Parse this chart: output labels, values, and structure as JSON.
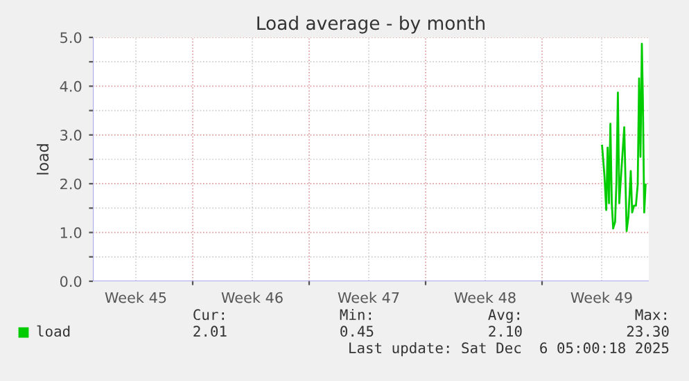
{
  "chart_data": {
    "type": "line",
    "title": "Load average - by month",
    "ylabel": "load",
    "x": [
      "2025-12-04T14:36",
      "2025-12-04T18:00",
      "2025-12-04T20:36",
      "2025-12-04T22:36",
      "2025-12-05T00:36",
      "2025-12-05T02:36",
      "2025-12-05T04:36",
      "2025-12-05T06:36",
      "2025-12-05T09:24",
      "2025-12-05T11:24",
      "2025-12-05T13:24",
      "2025-12-05T15:24",
      "2025-12-05T18:00",
      "2025-12-05T22:36",
      "2025-12-06T02:00",
      "2025-12-06T04:36",
      "2025-12-06T08:00",
      "2025-12-06T10:00",
      "2025-12-06T12:36",
      "2025-12-06T15:24",
      "2025-12-06T18:00",
      "2025-12-06T20:00",
      "2025-12-06T22:00",
      "2025-12-07T00:00",
      "2025-12-07T01:24",
      "2025-12-07T03:24",
      "2025-12-07T05:24"
    ],
    "series": [
      {
        "name": "load",
        "color": "#00cc00",
        "values": [
          2.78,
          2.17,
          1.46,
          2.74,
          1.6,
          3.23,
          1.6,
          1.08,
          1.22,
          2.07,
          3.87,
          1.6,
          2.17,
          3.16,
          1.03,
          1.32,
          2.26,
          1.41,
          1.55,
          1.55,
          1.98,
          4.16,
          2.55,
          4.87,
          3.78,
          1.41,
          1.98
        ]
      }
    ],
    "xlim": [
      "2025-11-04",
      "2025-12-07T10:00"
    ],
    "xticks": [
      {
        "value": "2025-11-06T14:00",
        "label": "Week 45"
      },
      {
        "value": "2025-11-13T14:00",
        "label": "Week 46"
      },
      {
        "value": "2025-11-20T14:00",
        "label": "Week 47"
      },
      {
        "value": "2025-11-27T14:00",
        "label": "Week 48"
      },
      {
        "value": "2025-12-04T14:00",
        "label": "Week 49"
      },
      {
        "value": "2025-11-10",
        "label": null
      },
      {
        "value": "2025-11-17",
        "label": null
      },
      {
        "value": "2025-11-24",
        "label": null
      },
      {
        "value": "2025-12-01",
        "label": null
      }
    ],
    "ylim": [
      0,
      5
    ],
    "yticks": [
      {
        "value": 0,
        "label": "0.0"
      },
      {
        "value": 0.5,
        "label": null
      },
      {
        "value": 1,
        "label": "1.0"
      },
      {
        "value": 1.5,
        "label": null
      },
      {
        "value": 2,
        "label": "2.0"
      },
      {
        "value": 2.5,
        "label": null
      },
      {
        "value": 3,
        "label": "3.0"
      },
      {
        "value": 3.5,
        "label": null
      },
      {
        "value": 4,
        "label": "4.0"
      },
      {
        "value": 4.5,
        "label": null
      },
      {
        "value": 5,
        "label": "5.0"
      }
    ],
    "grid": true,
    "legend": "bottom",
    "annotations": [
      "Cur:",
      "Min:",
      "Avg:",
      "Max:",
      "2.01",
      "0.45",
      "2.10",
      "23.30",
      "Last update: Sat Dec  6 05:00:18 2025"
    ]
  }
}
